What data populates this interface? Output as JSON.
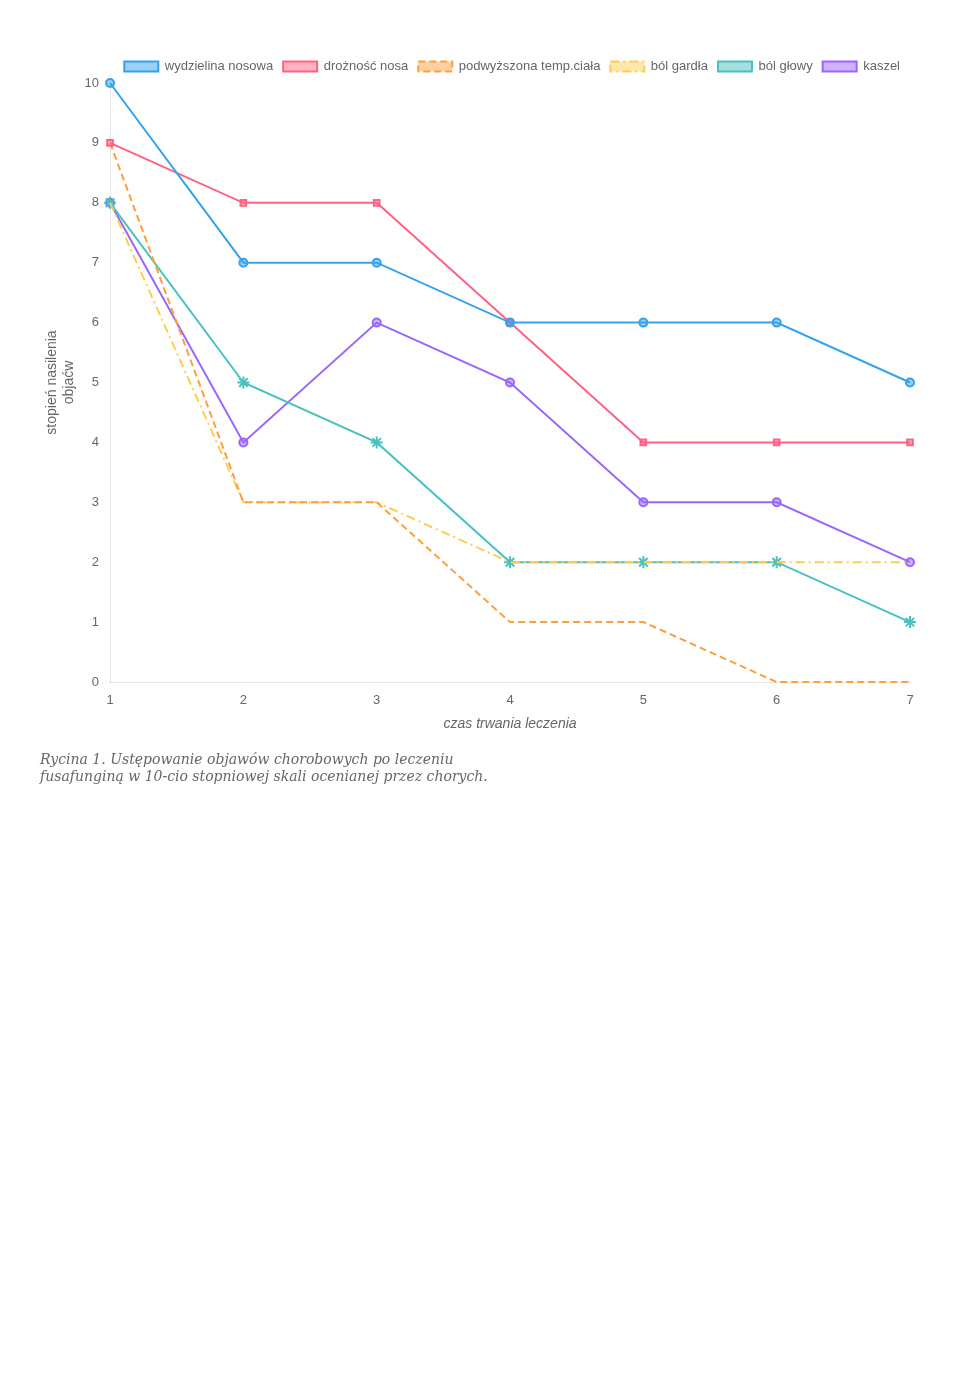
{
  "chart_data": {
    "type": "line",
    "caption": "Rycina 1. Ustępowanie objawów chorobowych po leczeniu\nfusafunginą w 10-cio stopniowej skali ocenianej przez chorych.",
    "x_label": "czas trwania leczenia",
    "y_label": "stopień nasilenia\nobjaćw",
    "x": [
      1,
      2,
      3,
      4,
      5,
      6,
      7
    ],
    "series": [
      {
        "name": "wydzielina nosowa",
        "values": [
          10,
          7,
          7,
          6,
          6,
          6,
          5
        ],
        "marker": "circle",
        "line_style": "solid"
      },
      {
        "name": "drożność nosa",
        "values": [
          9,
          8,
          8,
          6,
          4,
          4,
          4
        ],
        "marker": "square",
        "line_style": "solid"
      },
      {
        "name": "podwyższona temp.ciała",
        "values": [
          9,
          3,
          3,
          1,
          1,
          0,
          0
        ],
        "marker": "none",
        "line_style": "dashed"
      },
      {
        "name": "ból gardła",
        "values": [
          8,
          3,
          3,
          2,
          2,
          2,
          2
        ],
        "marker": "none",
        "line_style": "dashdot"
      },
      {
        "name": "ból głowy",
        "values": [
          8,
          5,
          4,
          2,
          2,
          2,
          1
        ],
        "marker": "star",
        "line_style": "solid"
      },
      {
        "name": "kaszel",
        "values": [
          8,
          4,
          6,
          5,
          3,
          3,
          2
        ],
        "marker": "circle",
        "line_style": "solid"
      }
    ],
    "xlim": [
      1,
      7
    ],
    "xticks": [
      1,
      2,
      3,
      4,
      5,
      6,
      7
    ],
    "ylim": [
      0,
      10
    ],
    "yticks": [
      0,
      1,
      2,
      3,
      4,
      5,
      6,
      7,
      8,
      9,
      10
    ],
    "grid": false,
    "legend": "upper right"
  }
}
